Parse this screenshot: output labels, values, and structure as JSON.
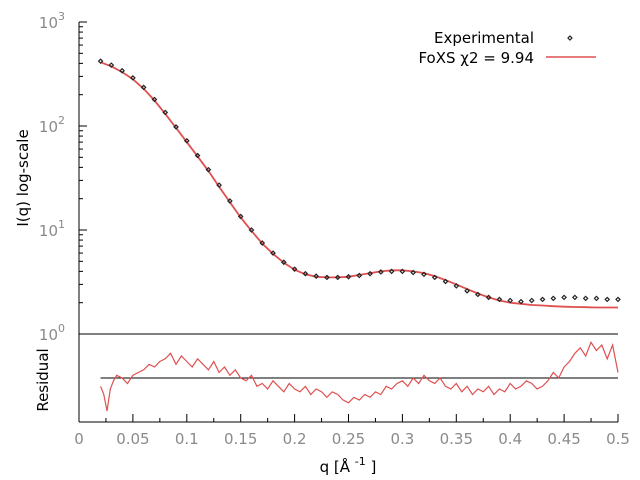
{
  "chart_data": [
    {
      "type": "scatter",
      "panel": "main",
      "ylabel": "I(q) log-scale",
      "yscale": "log",
      "xlim": [
        0,
        0.5
      ],
      "ylim": [
        1,
        1000
      ],
      "y_ticks": [
        {
          "base": "10",
          "exp": "0"
        },
        {
          "base": "10",
          "exp": "1"
        },
        {
          "base": "10",
          "exp": "2"
        },
        {
          "base": "10",
          "exp": "3"
        }
      ],
      "legend_position": "top-right",
      "series": [
        {
          "name": "Experimental",
          "kind": "points",
          "color": "#222222",
          "x": [
            0.02,
            0.03,
            0.04,
            0.05,
            0.06,
            0.07,
            0.08,
            0.09,
            0.1,
            0.11,
            0.12,
            0.13,
            0.14,
            0.15,
            0.16,
            0.17,
            0.18,
            0.19,
            0.2,
            0.21,
            0.22,
            0.23,
            0.24,
            0.25,
            0.26,
            0.27,
            0.28,
            0.29,
            0.3,
            0.31,
            0.32,
            0.33,
            0.34,
            0.35,
            0.36,
            0.37,
            0.38,
            0.39,
            0.4,
            0.41,
            0.42,
            0.43,
            0.44,
            0.45,
            0.46,
            0.47,
            0.48,
            0.49,
            0.5
          ],
          "y": [
            420,
            385,
            340,
            290,
            235,
            180,
            135,
            98,
            72,
            52,
            38,
            27,
            19,
            13.5,
            10,
            7.5,
            6.0,
            4.9,
            4.2,
            3.8,
            3.6,
            3.5,
            3.5,
            3.55,
            3.65,
            3.8,
            3.95,
            4.0,
            4.0,
            3.9,
            3.75,
            3.5,
            3.2,
            2.9,
            2.6,
            2.4,
            2.25,
            2.15,
            2.1,
            2.05,
            2.1,
            2.15,
            2.2,
            2.25,
            2.25,
            2.2,
            2.2,
            2.15,
            2.15
          ]
        },
        {
          "name": "FoXS χ2 = 9.94",
          "kind": "line",
          "color": "#e05050",
          "x": [
            0.02,
            0.03,
            0.04,
            0.05,
            0.06,
            0.07,
            0.08,
            0.09,
            0.1,
            0.11,
            0.12,
            0.13,
            0.14,
            0.15,
            0.16,
            0.17,
            0.18,
            0.19,
            0.2,
            0.21,
            0.22,
            0.23,
            0.24,
            0.25,
            0.26,
            0.27,
            0.28,
            0.29,
            0.3,
            0.31,
            0.32,
            0.33,
            0.34,
            0.35,
            0.36,
            0.37,
            0.38,
            0.39,
            0.4,
            0.41,
            0.42,
            0.43,
            0.44,
            0.45,
            0.46,
            0.47,
            0.48,
            0.49,
            0.5
          ],
          "y": [
            410,
            375,
            330,
            282,
            228,
            176,
            131,
            96,
            70,
            51,
            37,
            26,
            18.5,
            13.2,
            9.8,
            7.4,
            5.9,
            4.85,
            4.15,
            3.75,
            3.55,
            3.5,
            3.5,
            3.55,
            3.7,
            3.85,
            4.0,
            4.1,
            4.1,
            4.0,
            3.85,
            3.6,
            3.3,
            3.0,
            2.7,
            2.45,
            2.25,
            2.1,
            2.0,
            1.95,
            1.9,
            1.88,
            1.85,
            1.83,
            1.82,
            1.81,
            1.8,
            1.8,
            1.8
          ]
        }
      ]
    },
    {
      "type": "line",
      "panel": "residual",
      "xlabel_base": "q [Å",
      "xlabel_exp": "-1",
      "xlabel_tail": "]",
      "ylabel": "Residual",
      "xlim": [
        0,
        0.5
      ],
      "ylim": [
        -1.6,
        1.6
      ],
      "x_ticks": [
        "0",
        "0.05",
        "0.1",
        "0.15",
        "0.2",
        "0.25",
        "0.3",
        "0.35",
        "0.4",
        "0.45",
        "0.5"
      ],
      "baseline": 0,
      "series": [
        {
          "kind": "line",
          "color": "#e05050",
          "x": [
            0.02,
            0.023,
            0.026,
            0.029,
            0.032,
            0.035,
            0.04,
            0.045,
            0.05,
            0.055,
            0.06,
            0.065,
            0.07,
            0.075,
            0.08,
            0.085,
            0.09,
            0.095,
            0.1,
            0.105,
            0.11,
            0.115,
            0.12,
            0.125,
            0.13,
            0.135,
            0.14,
            0.145,
            0.15,
            0.155,
            0.16,
            0.165,
            0.17,
            0.175,
            0.18,
            0.185,
            0.19,
            0.195,
            0.2,
            0.205,
            0.21,
            0.215,
            0.22,
            0.225,
            0.23,
            0.235,
            0.24,
            0.245,
            0.25,
            0.255,
            0.26,
            0.265,
            0.27,
            0.275,
            0.28,
            0.285,
            0.29,
            0.295,
            0.3,
            0.305,
            0.31,
            0.315,
            0.32,
            0.325,
            0.33,
            0.335,
            0.34,
            0.345,
            0.35,
            0.355,
            0.36,
            0.365,
            0.37,
            0.375,
            0.38,
            0.385,
            0.39,
            0.395,
            0.4,
            0.405,
            0.41,
            0.415,
            0.42,
            0.425,
            0.43,
            0.435,
            0.44,
            0.445,
            0.45,
            0.455,
            0.46,
            0.465,
            0.47,
            0.475,
            0.48,
            0.485,
            0.49,
            0.495,
            0.5
          ],
          "y": [
            -0.3,
            -0.6,
            -1.2,
            -0.4,
            -0.1,
            0.1,
            0.0,
            -0.2,
            0.1,
            0.2,
            0.3,
            0.5,
            0.4,
            0.6,
            0.7,
            0.9,
            0.5,
            0.8,
            0.6,
            0.4,
            0.7,
            0.5,
            0.3,
            0.6,
            0.2,
            0.4,
            0.1,
            0.3,
            0.0,
            -0.1,
            0.1,
            -0.3,
            -0.2,
            -0.4,
            -0.1,
            -0.3,
            -0.5,
            -0.2,
            -0.4,
            -0.5,
            -0.3,
            -0.6,
            -0.4,
            -0.5,
            -0.7,
            -0.5,
            -0.6,
            -0.8,
            -0.9,
            -0.7,
            -0.8,
            -0.6,
            -0.7,
            -0.5,
            -0.6,
            -0.3,
            -0.4,
            -0.2,
            -0.1,
            -0.3,
            0.0,
            -0.2,
            0.1,
            -0.1,
            -0.2,
            0.0,
            -0.3,
            -0.4,
            -0.2,
            -0.5,
            -0.3,
            -0.6,
            -0.4,
            -0.5,
            -0.3,
            -0.6,
            -0.4,
            -0.5,
            -0.2,
            -0.4,
            -0.3,
            -0.1,
            -0.2,
            -0.4,
            -0.3,
            -0.1,
            0.2,
            0.0,
            0.4,
            0.6,
            0.9,
            1.1,
            0.8,
            1.3,
            1.0,
            1.2,
            0.7,
            1.2,
            0.2
          ]
        }
      ]
    }
  ],
  "colors": {
    "experimental": "#222222",
    "fit": "#e05050",
    "axis": "#000000",
    "tick_label": "#8a8a8a",
    "background": "#ffffff"
  }
}
